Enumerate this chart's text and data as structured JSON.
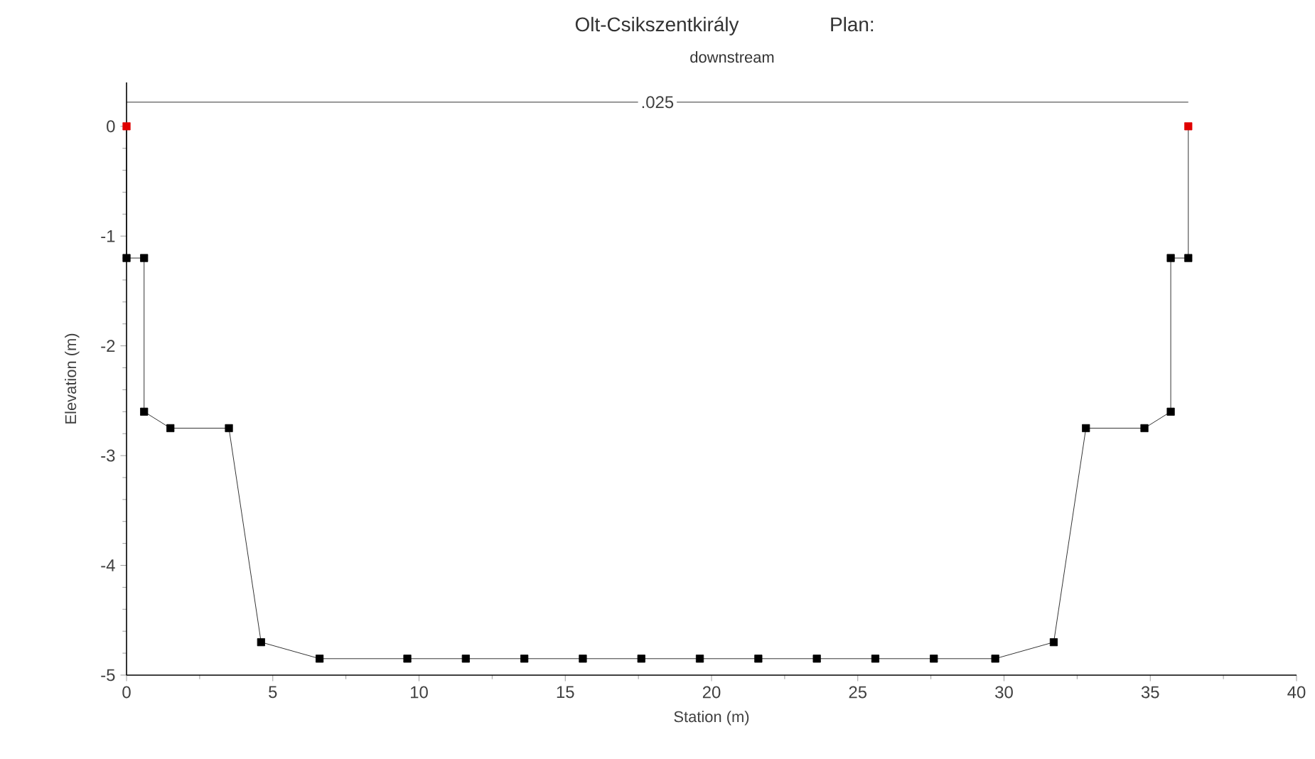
{
  "chart_data": {
    "type": "line",
    "title": "Olt-Csikszentkirály",
    "subtitle": "downstream",
    "xlabel": "Station (m)",
    "ylabel": "Elevation (m)",
    "annotations": [
      "Plan:",
      {
        "text": ".025",
        "x": 18.15,
        "y": 0.22
      }
    ],
    "series": [
      {
        "color": "#000000",
        "marker": "square",
        "line_style": "solid",
        "x": [
          0,
          0,
          0.6,
          0.6,
          1.5,
          3.5,
          4.6,
          6.6,
          9.6,
          11.6,
          13.6,
          15.6,
          17.6,
          19.6,
          21.6,
          23.6,
          25.6,
          27.6,
          29.7,
          31.7,
          32.8,
          34.8,
          35.7,
          35.7,
          36.3,
          36.3
        ],
        "values": [
          0,
          -1.2,
          -1.2,
          -2.6,
          -2.75,
          -2.75,
          -4.7,
          -4.85,
          -4.85,
          -4.85,
          -4.85,
          -4.85,
          -4.85,
          -4.85,
          -4.85,
          -4.85,
          -4.85,
          -4.85,
          -4.85,
          -4.7,
          -2.75,
          -2.75,
          -2.6,
          -1.2,
          -1.2,
          0
        ],
        "colors": [
          "#e00000",
          "#000000",
          "#000000",
          "#000000",
          "#000000",
          "#000000",
          "#000000",
          "#000000",
          "#000000",
          "#000000",
          "#000000",
          "#000000",
          "#000000",
          "#000000",
          "#000000",
          "#000000",
          "#000000",
          "#000000",
          "#000000",
          "#000000",
          "#000000",
          "#000000",
          "#000000",
          "#000000",
          "#000000",
          "#e00000"
        ]
      },
      {
        "type": "line",
        "color": "#000000",
        "marker": "none",
        "line_style": "solid",
        "x": [
          0,
          36.3
        ],
        "values": [
          0.22,
          0.22
        ]
      }
    ],
    "xlim": [
      0,
      40
    ],
    "xticks": [
      0,
      5,
      10,
      15,
      20,
      25,
      30,
      35,
      40
    ],
    "ylim": [
      -5,
      0.4
    ],
    "yticks": [
      -5,
      -4,
      -3,
      -2,
      -1,
      0
    ],
    "grid": false
  }
}
